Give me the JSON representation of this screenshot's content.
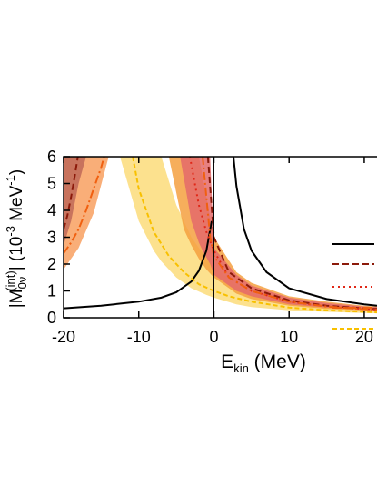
{
  "chart_data": {
    "type": "line",
    "xlabel_parts": [
      "E",
      "kin",
      " (MeV)"
    ],
    "ylabel_parts": [
      "|M",
      "0ν",
      "(int)",
      "| (10",
      "-3",
      " MeV",
      "-1",
      ")"
    ],
    "xlim": [
      -20,
      21.7
    ],
    "ylim": [
      0,
      6
    ],
    "xticks": [
      -20,
      -10,
      0,
      10,
      20
    ],
    "yticks": [
      0,
      1,
      2,
      3,
      4,
      5,
      6
    ],
    "vline": 0,
    "bands": [
      {
        "color": "#f8a060",
        "x": [
          -20,
          -18,
          -16,
          -14
        ],
        "lower": [
          1.8,
          2.6,
          3.9,
          6
        ],
        "upper": [
          6,
          6,
          6,
          6
        ]
      },
      {
        "color": "#c06858",
        "x": [
          -20,
          -19,
          -18,
          -17
        ],
        "lower": [
          2.7,
          3.6,
          5,
          6
        ],
        "upper": [
          6,
          6,
          6,
          6
        ]
      },
      {
        "color": "#fbdc7a",
        "x": [
          -12.5,
          -10,
          -8,
          -7,
          -5,
          -3,
          -1,
          0,
          3,
          5,
          10,
          15,
          20,
          21.7
        ],
        "lower": [
          6,
          3.6,
          2.5,
          2.1,
          1.5,
          1.1,
          0.85,
          0.75,
          0.5,
          0.4,
          0.28,
          0.22,
          0.18,
          0.17
        ],
        "upper": [
          6,
          6,
          6,
          6,
          4.2,
          3,
          2.2,
          1.9,
          1.2,
          0.9,
          0.6,
          0.45,
          0.35,
          0.33
        ]
      },
      {
        "color": "#f5a040",
        "x": [
          -6,
          -4,
          -3,
          -2,
          -1,
          0,
          3,
          5,
          10,
          15,
          20,
          21.7
        ],
        "lower": [
          6,
          3.3,
          2.7,
          2.2,
          1.8,
          1.5,
          0.9,
          0.7,
          0.45,
          0.33,
          0.27,
          0.25
        ],
        "upper": [
          6,
          6,
          6,
          6,
          4.5,
          3.0,
          1.7,
          1.3,
          0.8,
          0.6,
          0.45,
          0.42
        ]
      },
      {
        "color": "#e46a6a",
        "x": [
          -4.5,
          -3,
          -2,
          -1.5,
          -0.5,
          0,
          3,
          5,
          10,
          15,
          20,
          21.7
        ],
        "lower": [
          6,
          3.6,
          2.8,
          2.5,
          2.0,
          1.6,
          1.0,
          0.8,
          0.5,
          0.38,
          0.3,
          0.28
        ],
        "upper": [
          6,
          6,
          6,
          6,
          6,
          2.6,
          1.6,
          1.2,
          0.75,
          0.55,
          0.42,
          0.4
        ]
      }
    ],
    "series": [
      {
        "color": "#000000",
        "dash": "solid",
        "x": [
          -20,
          -15,
          -10,
          -7,
          -5,
          -3,
          -2,
          -1,
          -0.3,
          1,
          2.6,
          3,
          4,
          5,
          7,
          10,
          15,
          20,
          21.7
        ],
        "values": [
          0.35,
          0.45,
          0.6,
          0.75,
          0.95,
          1.35,
          1.75,
          2.5,
          3.6,
          null,
          6,
          4.9,
          3.3,
          2.5,
          1.7,
          1.1,
          0.7,
          0.5,
          0.45
        ]
      },
      {
        "color": "#8b1a0a",
        "dash": "dashed",
        "x": [
          -20,
          -19.5,
          -19,
          -18.5,
          -18.1,
          -10,
          -0.8,
          0,
          2,
          5,
          10,
          15,
          20,
          21.7
        ],
        "values": [
          3.3,
          3.8,
          4.5,
          5.3,
          6,
          null,
          6,
          3.0,
          1.7,
          1.1,
          0.65,
          0.45,
          0.35,
          0.33
        ]
      },
      {
        "color": "#e02818",
        "dash": "dotted",
        "x": [
          -3.2,
          -2,
          -1,
          0,
          2,
          5,
          10,
          15,
          20,
          21.7
        ],
        "values": [
          6,
          4.2,
          3.2,
          2.5,
          1.5,
          1.0,
          0.6,
          0.42,
          0.33,
          0.31
        ]
      },
      {
        "color": "#f06010",
        "dash": "dashdot",
        "x": [
          -20,
          -19,
          -18,
          -17,
          -16,
          -15,
          -14.6,
          -8,
          -1.5,
          -0.5,
          0,
          2,
          5,
          10,
          15,
          20,
          21.7
        ],
        "values": [
          2.4,
          2.8,
          3.3,
          4,
          4.8,
          5.6,
          6,
          null,
          6,
          3.0,
          2.3,
          1.5,
          1.0,
          0.6,
          0.42,
          0.32,
          0.3
        ]
      },
      {
        "color": "#f8c000",
        "dash": "shortdash",
        "x": [
          -10.8,
          -10,
          -8,
          -6,
          -4,
          -2,
          0,
          2,
          5,
          10,
          15,
          20,
          21.7
        ],
        "values": [
          6,
          4.8,
          3.2,
          2.3,
          1.7,
          1.25,
          1.0,
          0.8,
          0.6,
          0.38,
          0.28,
          0.22,
          0.2
        ]
      }
    ]
  }
}
